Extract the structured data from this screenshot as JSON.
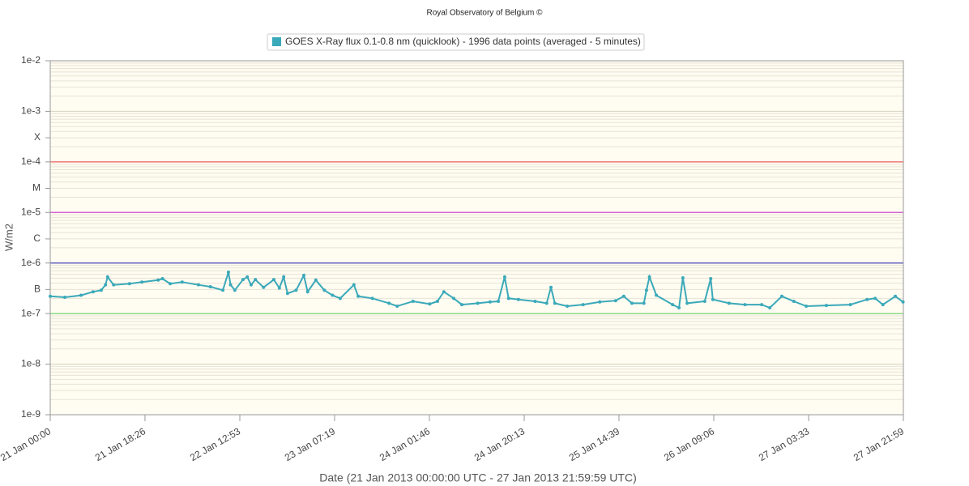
{
  "chart_data": {
    "type": "line",
    "title": "Royal Observatory of Belgium ©",
    "x_label": "Date (21 Jan 2013 00:00:00 UTC - 27 Jan 2013 21:59:59 UTC)",
    "y_label": "W/m2",
    "log_y": true,
    "grid": true,
    "minor_grid": true,
    "legend": "top",
    "xlim": [
      "2013-01-21T00:00",
      "2013-01-27T21:59"
    ],
    "ylim": [
      1e-09,
      0.01
    ],
    "xticks": [
      {
        "value": "2013-01-21T00:00",
        "label": "21 Jan 00:00"
      },
      {
        "value": "2013-01-21T18:26",
        "label": "21 Jan 18:26"
      },
      {
        "value": "2013-01-22T12:53",
        "label": "22 Jan 12:53"
      },
      {
        "value": "2013-01-23T07:19",
        "label": "23 Jan 07:19"
      },
      {
        "value": "2013-01-24T01:46",
        "label": "24 Jan 01:46"
      },
      {
        "value": "2013-01-24T20:13",
        "label": "24 Jan 20:13"
      },
      {
        "value": "2013-01-25T14:39",
        "label": "25 Jan 14:39"
      },
      {
        "value": "2013-01-26T09:06",
        "label": "26 Jan 09:06"
      },
      {
        "value": "2013-01-27T03:33",
        "label": "27 Jan 03:33"
      },
      {
        "value": "2013-01-27T21:59",
        "label": "27 Jan 21:59"
      }
    ],
    "yticks": [
      {
        "value": 1e-09,
        "label": "1e-9"
      },
      {
        "value": 1e-08,
        "label": "1e-8"
      },
      {
        "value": 1e-07,
        "label": "1e-7"
      },
      {
        "value": 3e-07,
        "label": "B"
      },
      {
        "value": 1e-06,
        "label": "1e-6"
      },
      {
        "value": 3e-06,
        "label": "C"
      },
      {
        "value": 1e-05,
        "label": "1e-5"
      },
      {
        "value": 3e-05,
        "label": "M"
      },
      {
        "value": 0.0001,
        "label": "1e-4"
      },
      {
        "value": 0.0003,
        "label": "X"
      },
      {
        "value": 0.001,
        "label": "1e-3"
      },
      {
        "value": 0.01,
        "label": "1e-2"
      }
    ],
    "thresholds": [
      {
        "value": 0.0001,
        "color": "#f06060"
      },
      {
        "value": 1e-05,
        "color": "#d050d0"
      },
      {
        "value": 1e-06,
        "color": "#4848b8"
      },
      {
        "value": 1e-07,
        "color": "#70d870"
      }
    ],
    "x": [
      "2013-01-21T00:00",
      "2013-01-21T02:50",
      "2013-01-21T06:00",
      "2013-01-21T08:20",
      "2013-01-21T09:55",
      "2013-01-21T10:45",
      "2013-01-21T11:10",
      "2013-01-21T12:20",
      "2013-01-21T15:25",
      "2013-01-21T17:50",
      "2013-01-21T21:00",
      "2013-01-21T21:50",
      "2013-01-21T23:20",
      "2013-01-22T01:40",
      "2013-01-22T04:50",
      "2013-01-22T07:10",
      "2013-01-22T09:35",
      "2013-01-22T10:40",
      "2013-01-22T11:05",
      "2013-01-22T11:55",
      "2013-01-22T13:30",
      "2013-01-22T14:20",
      "2013-01-22T15:05",
      "2013-01-22T15:55",
      "2013-01-22T17:30",
      "2013-01-22T19:30",
      "2013-01-22T20:35",
      "2013-01-22T21:25",
      "2013-01-22T22:10",
      "2013-01-22T23:50",
      "2013-01-23T01:20",
      "2013-01-23T02:05",
      "2013-01-23T03:40",
      "2013-01-23T05:20",
      "2013-01-23T06:55",
      "2013-01-23T08:25",
      "2013-01-23T11:05",
      "2013-01-23T11:55",
      "2013-01-23T14:40",
      "2013-01-23T17:55",
      "2013-01-23T19:30",
      "2013-01-23T22:35",
      "2013-01-24T01:50",
      "2013-01-24T03:20",
      "2013-01-24T04:35",
      "2013-01-24T06:30",
      "2013-01-24T08:05",
      "2013-01-24T11:10",
      "2013-01-24T13:35",
      "2013-01-24T15:10",
      "2013-01-24T16:25",
      "2013-01-24T17:10",
      "2013-01-24T19:05",
      "2013-01-24T22:20",
      "2013-01-25T00:35",
      "2013-01-25T01:25",
      "2013-01-25T02:10",
      "2013-01-25T04:35",
      "2013-01-25T07:40",
      "2013-01-25T10:55",
      "2013-01-25T14:00",
      "2013-01-25T15:35",
      "2013-01-25T17:10",
      "2013-01-25T19:30",
      "2013-01-25T20:00",
      "2013-01-25T20:35",
      "2013-01-25T21:55",
      "2013-01-26T01:05",
      "2013-01-26T02:20",
      "2013-01-26T03:05",
      "2013-01-26T03:55",
      "2013-01-26T07:20",
      "2013-01-26T08:30",
      "2013-01-26T08:55",
      "2013-01-26T12:05",
      "2013-01-26T15:10",
      "2013-01-26T18:25",
      "2013-01-26T20:00",
      "2013-01-26T22:20",
      "2013-01-27T00:40",
      "2013-01-27T03:05",
      "2013-01-27T07:00",
      "2013-01-27T11:40",
      "2013-01-27T14:55",
      "2013-01-27T16:30",
      "2013-01-27T18:00",
      "2013-01-27T20:25",
      "2013-01-27T21:55"
    ],
    "series": [
      {
        "name": "GOES X-Ray flux 0.1-0.8 nm (quicklook) - 1996 data points (averaged - 5 minutes)",
        "color": "#3aa9b9",
        "values": [
          2.2e-07,
          2.1e-07,
          2.3e-07,
          2.7e-07,
          2.9e-07,
          3.7e-07,
          5.3e-07,
          3.7e-07,
          3.9e-07,
          4.2e-07,
          4.6e-07,
          4.9e-07,
          3.9e-07,
          4.2e-07,
          3.7e-07,
          3.4e-07,
          2.9e-07,
          6.6e-07,
          3.7e-07,
          2.9e-07,
          4.7e-07,
          5.3e-07,
          3.7e-07,
          4.7e-07,
          3.3e-07,
          4.7e-07,
          3.2e-07,
          5.3e-07,
          2.5e-07,
          2.9e-07,
          5.7e-07,
          2.7e-07,
          4.6e-07,
          2.9e-07,
          2.3e-07,
          2e-07,
          3.7e-07,
          2.2e-07,
          2e-07,
          1.6e-07,
          1.4e-07,
          1.75e-07,
          1.55e-07,
          1.75e-07,
          2.7e-07,
          2e-07,
          1.5e-07,
          1.6e-07,
          1.7e-07,
          1.75e-07,
          5.3e-07,
          2e-07,
          1.9e-07,
          1.75e-07,
          1.6e-07,
          3.3e-07,
          1.6e-07,
          1.4e-07,
          1.5e-07,
          1.7e-07,
          1.8e-07,
          2.2e-07,
          1.6e-07,
          1.6e-07,
          2.9e-07,
          5.3e-07,
          2.3e-07,
          1.5e-07,
          1.3e-07,
          5.1e-07,
          1.6e-07,
          1.75e-07,
          4.9e-07,
          1.9e-07,
          1.6e-07,
          1.5e-07,
          1.5e-07,
          1.3e-07,
          2.2e-07,
          1.75e-07,
          1.4e-07,
          1.45e-07,
          1.5e-07,
          1.9e-07,
          2e-07,
          1.5e-07,
          2.2e-07,
          1.7e-07
        ]
      }
    ]
  }
}
